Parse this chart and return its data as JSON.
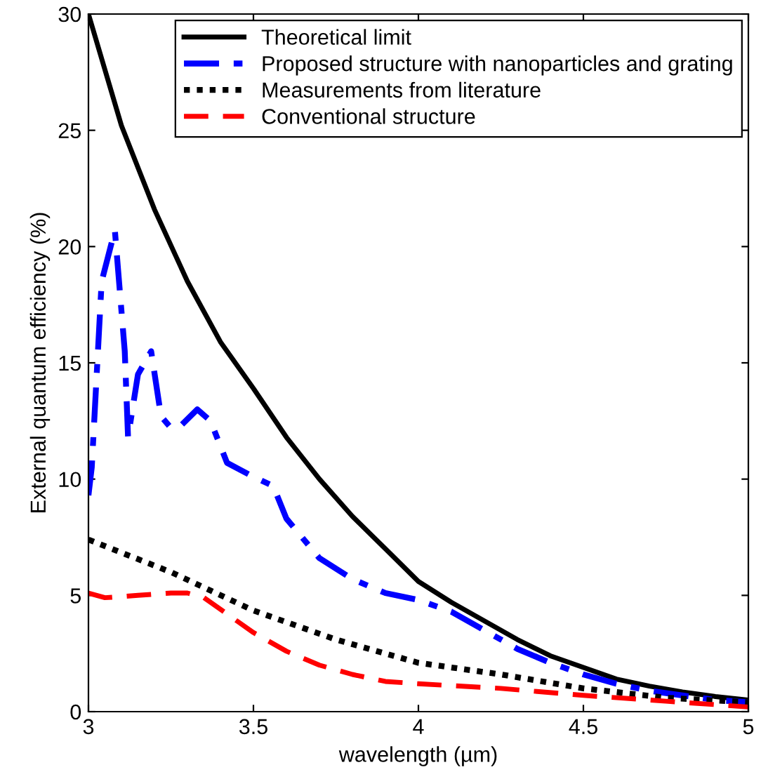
{
  "chart_data": {
    "type": "line",
    "xlabel": "wavelength (µm)",
    "ylabel": "External quantum efficiency (%)",
    "xlim": [
      3,
      5
    ],
    "ylim": [
      0,
      30
    ],
    "xticks": [
      3,
      3.5,
      4,
      4.5,
      5
    ],
    "yticks": [
      0,
      5,
      10,
      15,
      20,
      25,
      30
    ],
    "grid": false,
    "legend": "top right",
    "marker": "none",
    "series": [
      {
        "name": "Theoretical limit",
        "color": "#000000",
        "line_style": "solid",
        "x": [
          3,
          3.1,
          3.2,
          3.3,
          3.4,
          3.5,
          3.6,
          3.7,
          3.8,
          3.9,
          4,
          4.1,
          4.2,
          4.3,
          4.4,
          4.5,
          4.6,
          4.7,
          4.8,
          4.9,
          5
        ],
        "values": [
          30,
          25.2,
          21.6,
          18.5,
          15.9,
          13.9,
          11.8,
          10,
          8.4,
          7,
          5.6,
          4.7,
          3.9,
          3.1,
          2.4,
          1.9,
          1.4,
          1.1,
          0.85,
          0.65,
          0.5
        ]
      },
      {
        "name": "Proposed structure with nanoparticles and grating",
        "color": "#0000ff",
        "line_style": "dashdot",
        "x": [
          3,
          3.01,
          3.04,
          3.08,
          3.11,
          3.12,
          3.15,
          3.19,
          3.22,
          3.25,
          3.28,
          3.33,
          3.37,
          3.42,
          3.5,
          3.56,
          3.6,
          3.7,
          3.8,
          3.9,
          4,
          4.1,
          4.2,
          4.3,
          4.4,
          4.5,
          4.6,
          4.7,
          4.8,
          4.9,
          5
        ],
        "values": [
          9.3,
          10.5,
          18.5,
          20.7,
          15.5,
          11.8,
          14.5,
          15.5,
          12.7,
          12.2,
          12.3,
          13,
          12.5,
          10.7,
          10.1,
          9.7,
          8.3,
          6.6,
          5.7,
          5.1,
          4.8,
          4.3,
          3.5,
          2.7,
          2.1,
          1.6,
          1.2,
          0.9,
          0.7,
          0.5,
          0.4
        ]
      },
      {
        "name": "Measurements from literature",
        "color": "#000000",
        "line_style": "dotted",
        "x": [
          3,
          3.25,
          3.5,
          3.75,
          4,
          4.25,
          4.5,
          4.75,
          5
        ],
        "values": [
          7.4,
          6,
          4.35,
          3.1,
          2.1,
          1.6,
          1,
          0.6,
          0.4
        ]
      },
      {
        "name": "Conventional structure",
        "color": "#ff0000",
        "line_style": "dashed",
        "x": [
          3,
          3.05,
          3.15,
          3.25,
          3.3,
          3.35,
          3.45,
          3.5,
          3.6,
          3.7,
          3.8,
          3.9,
          4,
          4.25,
          4.5,
          4.75,
          5
        ],
        "values": [
          5.1,
          4.9,
          5,
          5.1,
          5.1,
          4.9,
          3.9,
          3.4,
          2.6,
          2,
          1.6,
          1.3,
          1.2,
          1,
          0.7,
          0.45,
          0.2
        ]
      }
    ]
  }
}
